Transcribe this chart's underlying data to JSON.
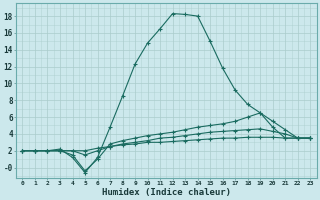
{
  "xlabel": "Humidex (Indice chaleur)",
  "background_color": "#cce8ec",
  "grid_color": "#aacccc",
  "line_color": "#1a6b60",
  "xlim": [
    -0.5,
    23.5
  ],
  "ylim": [
    -1.2,
    19.5
  ],
  "xticks": [
    0,
    1,
    2,
    3,
    4,
    5,
    6,
    7,
    8,
    9,
    10,
    11,
    12,
    13,
    14,
    15,
    16,
    17,
    18,
    19,
    20,
    21,
    22,
    23
  ],
  "yticks": [
    0,
    2,
    4,
    6,
    8,
    10,
    12,
    14,
    16,
    18
  ],
  "ytick_labels": [
    "-0",
    "2",
    "4",
    "6",
    "8",
    "10",
    "12",
    "14",
    "16",
    "18"
  ],
  "line1_x": [
    0,
    1,
    2,
    3,
    4,
    5,
    6,
    7,
    8,
    9,
    10,
    11,
    12,
    13,
    14,
    15,
    16,
    17,
    18,
    19,
    20,
    21,
    22,
    23
  ],
  "line1_y": [
    2.0,
    2.0,
    2.0,
    2.2,
    1.2,
    -0.6,
    1.2,
    4.8,
    8.5,
    12.3,
    14.8,
    16.5,
    18.3,
    18.2,
    18.0,
    15.0,
    11.8,
    9.2,
    7.5,
    6.5,
    4.8,
    3.5,
    3.5,
    3.5
  ],
  "line2_x": [
    0,
    1,
    2,
    3,
    4,
    5,
    6,
    7,
    8,
    9,
    10,
    11,
    12,
    13,
    14,
    15,
    16,
    17,
    18,
    19,
    20,
    21,
    22,
    23
  ],
  "line2_y": [
    2.0,
    2.0,
    2.0,
    2.0,
    1.5,
    -0.4,
    1.0,
    2.8,
    3.2,
    3.5,
    3.8,
    4.0,
    4.2,
    4.5,
    4.8,
    5.0,
    5.2,
    5.5,
    6.0,
    6.5,
    5.5,
    4.5,
    3.5,
    3.5
  ],
  "line3_x": [
    0,
    1,
    2,
    3,
    4,
    5,
    6,
    7,
    8,
    9,
    10,
    11,
    12,
    13,
    14,
    15,
    16,
    17,
    18,
    19,
    20,
    21,
    22,
    23
  ],
  "line3_y": [
    2.0,
    2.0,
    2.0,
    2.0,
    2.0,
    1.5,
    2.0,
    2.5,
    2.8,
    3.0,
    3.2,
    3.5,
    3.6,
    3.8,
    4.0,
    4.2,
    4.3,
    4.4,
    4.5,
    4.6,
    4.3,
    4.0,
    3.5,
    3.5
  ],
  "line4_x": [
    0,
    1,
    2,
    3,
    4,
    5,
    6,
    7,
    8,
    9,
    10,
    11,
    12,
    13,
    14,
    15,
    16,
    17,
    18,
    19,
    20,
    21,
    22,
    23
  ],
  "line4_y": [
    2.0,
    2.0,
    2.0,
    2.0,
    2.0,
    2.0,
    2.3,
    2.5,
    2.7,
    2.8,
    3.0,
    3.0,
    3.1,
    3.2,
    3.3,
    3.4,
    3.5,
    3.5,
    3.6,
    3.6,
    3.6,
    3.5,
    3.5,
    3.5
  ]
}
